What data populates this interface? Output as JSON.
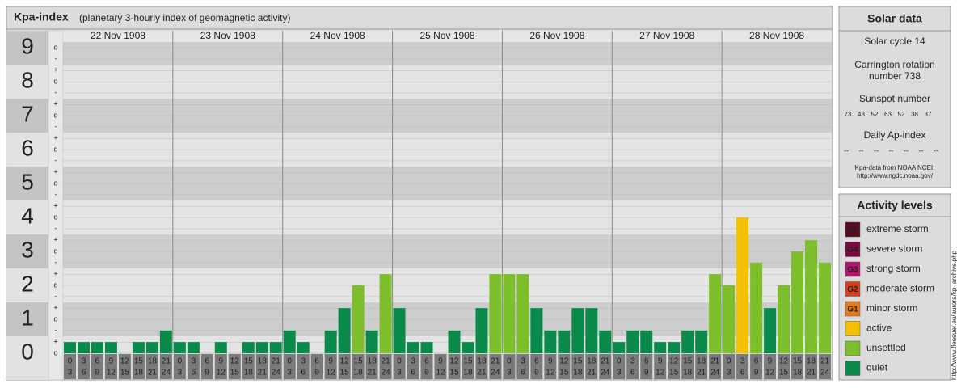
{
  "chart_data": {
    "type": "bar",
    "title": "Kpa-index",
    "subtitle": "(planetary 3-hourly index of geomagnetic activity)",
    "categories": [
      "22 Nov 1908",
      "23 Nov 1908",
      "24 Nov 1908",
      "25 Nov 1908",
      "26 Nov 1908",
      "27 Nov 1908",
      "28 Nov 1908"
    ],
    "slot_labels": [
      [
        "0",
        "3"
      ],
      [
        "3",
        "6"
      ],
      [
        "6",
        "9"
      ],
      [
        "9",
        "12"
      ],
      [
        "12",
        "15"
      ],
      [
        "15",
        "18"
      ],
      [
        "18",
        "21"
      ],
      [
        "21",
        "24"
      ]
    ],
    "values": [
      [
        0.33,
        0.33,
        0.33,
        0.33,
        0,
        0.33,
        0.33,
        0.67
      ],
      [
        0.33,
        0.33,
        0,
        0.33,
        0,
        0.33,
        0.33,
        0.33
      ],
      [
        0.67,
        0.33,
        0,
        0.67,
        1.33,
        2,
        0.67,
        2.33
      ],
      [
        1.33,
        0.33,
        0.33,
        0,
        0.67,
        0.33,
        1.33,
        2.33
      ],
      [
        2.33,
        2.33,
        1.33,
        0.67,
        0.67,
        1.33,
        1.33,
        0.67
      ],
      [
        0.33,
        0.67,
        0.67,
        0.33,
        0.33,
        0.67,
        0.67,
        2.33
      ],
      [
        2,
        4,
        2.67,
        1.33,
        2,
        3,
        3.33,
        2.67
      ]
    ],
    "colors": [
      [
        "#0a8a4a",
        "#0a8a4a",
        "#0a8a4a",
        "#0a8a4a",
        "#0a8a4a",
        "#0a8a4a",
        "#0a8a4a",
        "#0a8a4a"
      ],
      [
        "#0a8a4a",
        "#0a8a4a",
        "#0a8a4a",
        "#0a8a4a",
        "#0a8a4a",
        "#0a8a4a",
        "#0a8a4a",
        "#0a8a4a"
      ],
      [
        "#0a8a4a",
        "#0a8a4a",
        "#0a8a4a",
        "#0a8a4a",
        "#0a8a4a",
        "#7dbf2a",
        "#0a8a4a",
        "#7dbf2a"
      ],
      [
        "#0a8a4a",
        "#0a8a4a",
        "#0a8a4a",
        "#0a8a4a",
        "#0a8a4a",
        "#0a8a4a",
        "#0a8a4a",
        "#7dbf2a"
      ],
      [
        "#7dbf2a",
        "#7dbf2a",
        "#0a8a4a",
        "#0a8a4a",
        "#0a8a4a",
        "#0a8a4a",
        "#0a8a4a",
        "#0a8a4a"
      ],
      [
        "#0a8a4a",
        "#0a8a4a",
        "#0a8a4a",
        "#0a8a4a",
        "#0a8a4a",
        "#0a8a4a",
        "#0a8a4a",
        "#7dbf2a"
      ],
      [
        "#7dbf2a",
        "#f5c000",
        "#7dbf2a",
        "#0a8a4a",
        "#7dbf2a",
        "#7dbf2a",
        "#7dbf2a",
        "#7dbf2a"
      ]
    ],
    "ylim": [
      0,
      9.17
    ],
    "yticks": [
      0,
      1,
      2,
      3,
      4,
      5,
      6,
      7,
      8,
      9
    ],
    "yminor_ticks": [
      {
        "value": 0,
        "label": "o"
      },
      {
        "value": 0.33,
        "label": "+"
      },
      {
        "value": 0.67,
        "label": "-"
      },
      {
        "value": 1,
        "label": "o"
      },
      {
        "value": 1.33,
        "label": "+"
      },
      {
        "value": 1.67,
        "label": "-"
      },
      {
        "value": 2,
        "label": "o"
      },
      {
        "value": 2.33,
        "label": "+"
      },
      {
        "value": 2.67,
        "label": "-"
      },
      {
        "value": 3,
        "label": "o"
      },
      {
        "value": 3.33,
        "label": "+"
      },
      {
        "value": 3.67,
        "label": "-"
      },
      {
        "value": 4,
        "label": "o"
      },
      {
        "value": 4.33,
        "label": "+"
      },
      {
        "value": 4.67,
        "label": "-"
      },
      {
        "value": 5,
        "label": "o"
      },
      {
        "value": 5.33,
        "label": "+"
      },
      {
        "value": 5.67,
        "label": "-"
      },
      {
        "value": 6,
        "label": "o"
      },
      {
        "value": 6.33,
        "label": "+"
      },
      {
        "value": 6.67,
        "label": "-"
      },
      {
        "value": 7,
        "label": "o"
      },
      {
        "value": 7.33,
        "label": "+"
      },
      {
        "value": 7.67,
        "label": "-"
      },
      {
        "value": 8,
        "label": "o"
      },
      {
        "value": 8.33,
        "label": "+"
      },
      {
        "value": 8.67,
        "label": "-"
      },
      {
        "value": 9,
        "label": "o"
      }
    ],
    "grid": true
  },
  "solar_data": {
    "title": "Solar data",
    "solar_cycle": "Solar cycle 14",
    "carrington": [
      "Carrington rotation",
      "number 738"
    ],
    "sunspot_title": "Sunspot number",
    "sunspot_numbers": [
      73,
      43,
      52,
      63,
      52,
      38,
      37
    ],
    "ap_title": "Daily Ap-index",
    "ap_values": [
      "--",
      "--",
      "--",
      "--",
      "--",
      "--",
      "--"
    ],
    "source": [
      "Kpa-data from NOAA NCEI:",
      "http://www.ngdc.noaa.gov/"
    ]
  },
  "activity_levels": {
    "title": "Activity levels",
    "items": [
      {
        "badge": "G5",
        "name": "extreme storm",
        "color": "#5c0a24"
      },
      {
        "badge": "G4",
        "name": "severe storm",
        "color": "#7a0a40"
      },
      {
        "badge": "G3",
        "name": "strong storm",
        "color": "#b5166b"
      },
      {
        "badge": "G2",
        "name": "moderate storm",
        "color": "#d9401a"
      },
      {
        "badge": "G1",
        "name": "minor storm",
        "color": "#e87a1a"
      },
      {
        "name": "active",
        "color": "#f5c000"
      },
      {
        "name": "unsettled",
        "color": "#7dbf2a"
      },
      {
        "name": "quiet",
        "color": "#0a8a4a"
      }
    ]
  },
  "side_url": "http://www.fleesuer.eu/aurora/kp_archive.php"
}
